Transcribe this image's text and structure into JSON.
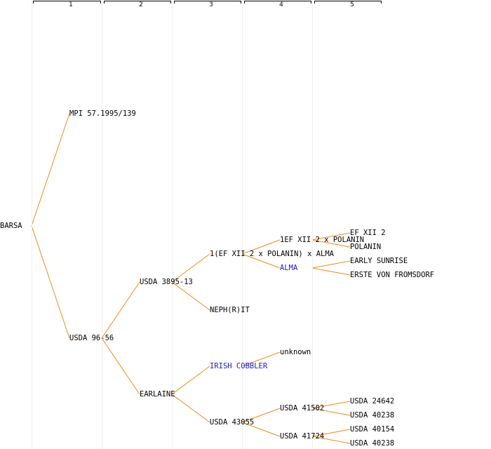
{
  "colors": {
    "edge": "#f08a1a",
    "highlight": "#1a1acd",
    "text": "#000000",
    "guide": "#eeeeee"
  },
  "generations": [
    "1",
    "2",
    "3",
    "4",
    "5"
  ],
  "nodes": {
    "barsa": "BARSA",
    "mpi": "MPI 57.1995/139",
    "usda9656": "USDA 96-56",
    "usda389513": "USDA 3895-13",
    "earlaine": "EARLAINE",
    "efxii_cross_alma": "1(EF XII 2 x POLANIN) x ALMA",
    "nephrit": "NEPH(R)IT",
    "irish_cobbler": "IRISH COBBLER",
    "usda43055": "USDA 43055",
    "efxii_cross": "1EF XII 2 x POLANIN",
    "alma": "ALMA",
    "unknown": "unknown",
    "usda41502": "USDA 41502",
    "usda41724": "USDA 41724",
    "efxii2": "EF XII 2",
    "polanin": "POLANIN",
    "early_sunrise": "EARLY SUNRISE",
    "erste": "ERSTE VON FROMSDORF",
    "usda24642": "USDA 24642",
    "usda40238a": "USDA 40238",
    "usda40154": "USDA 40154",
    "usda40238b": "USDA 40238"
  },
  "highlighted": [
    "irish_cobbler",
    "alma"
  ],
  "edges": [
    [
      "barsa",
      "mpi"
    ],
    [
      "barsa",
      "usda9656"
    ],
    [
      "usda9656",
      "usda389513"
    ],
    [
      "usda9656",
      "earlaine"
    ],
    [
      "usda389513",
      "efxii_cross_alma"
    ],
    [
      "usda389513",
      "nephrit"
    ],
    [
      "earlaine",
      "irish_cobbler"
    ],
    [
      "earlaine",
      "usda43055"
    ],
    [
      "efxii_cross_alma",
      "efxii_cross"
    ],
    [
      "efxii_cross_alma",
      "alma"
    ],
    [
      "irish_cobbler",
      "unknown"
    ],
    [
      "usda43055",
      "usda41502"
    ],
    [
      "usda43055",
      "usda41724"
    ],
    [
      "efxii_cross",
      "efxii2"
    ],
    [
      "efxii_cross",
      "polanin"
    ],
    [
      "alma",
      "early_sunrise"
    ],
    [
      "alma",
      "erste"
    ],
    [
      "usda41502",
      "usda24642"
    ],
    [
      "usda41502",
      "usda40238a"
    ],
    [
      "usda41724",
      "usda40154"
    ],
    [
      "usda41724",
      "usda40238b"
    ]
  ]
}
